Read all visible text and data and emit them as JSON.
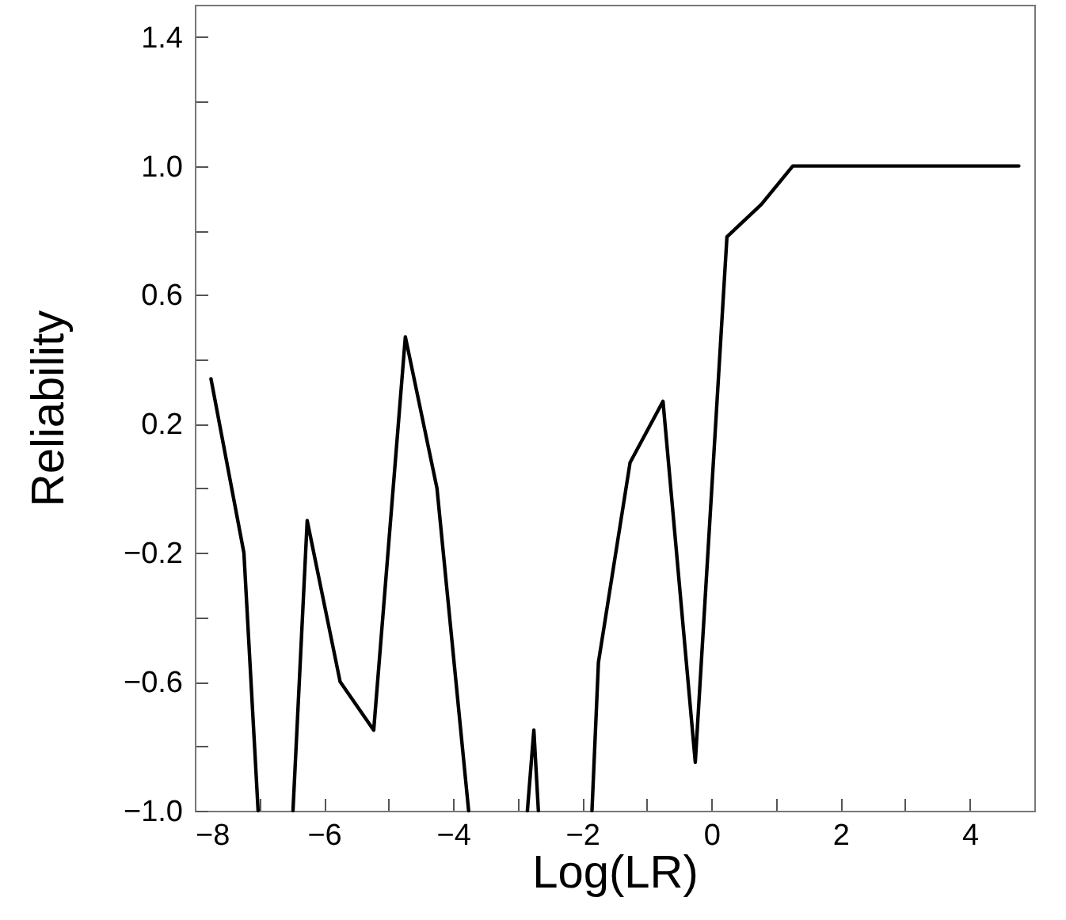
{
  "chart_data": {
    "type": "line",
    "xlabel": "Log(LR)",
    "ylabel": "Reliability",
    "series": [
      {
        "color": "#000000",
        "x": [
          -7.75,
          -7.24,
          -7.02,
          -6.75,
          -6.48,
          -6.26,
          -5.75,
          -5.23,
          -4.74,
          -4.25,
          -3.76,
          -3.3,
          -2.85,
          -2.75,
          -2.68,
          -2.3,
          -1.85,
          -1.75,
          -1.26,
          -0.75,
          -0.25,
          0.24,
          0.77,
          1.26,
          4.76
        ],
        "values": [
          0.34,
          -0.2,
          -1.0,
          null,
          -1.0,
          -0.1,
          -0.6,
          -0.75,
          0.47,
          0.0,
          -1.0,
          null,
          -1.0,
          -0.75,
          -1.0,
          null,
          -1.0,
          -0.54,
          0.08,
          0.27,
          -0.85,
          0.78,
          0.88,
          1.0,
          1.0
        ]
      }
    ],
    "xlim": [
      -8,
      5
    ],
    "xticks": [
      -8,
      {
        "value": -7,
        "label": null
      },
      -6,
      {
        "value": -5,
        "label": null
      },
      -4,
      {
        "value": -3,
        "label": null
      },
      -2,
      {
        "value": -1,
        "label": null
      },
      0,
      {
        "value": 1,
        "label": null
      },
      2,
      {
        "value": 3,
        "label": null
      },
      4
    ],
    "ylim": [
      -1.0,
      1.5
    ],
    "yticks": [
      {
        "value": -1.0,
        "label": "−1.0"
      },
      {
        "value": -0.8,
        "label": null
      },
      {
        "value": -0.6,
        "label": "−0.6"
      },
      {
        "value": -0.4,
        "label": null
      },
      {
        "value": -0.2,
        "label": "−0.2"
      },
      {
        "value": 0.0,
        "label": null
      },
      {
        "value": 0.2,
        "label": "0.2"
      },
      {
        "value": 0.4,
        "label": null
      },
      {
        "value": 0.6,
        "label": "0.6"
      },
      {
        "value": 0.8,
        "label": null
      },
      {
        "value": 1.0,
        "label": "1.0"
      },
      {
        "value": 1.2,
        "label": null
      },
      {
        "value": 1.4,
        "label": "1.4"
      }
    ],
    "grid": false,
    "marker": "none",
    "line_style": "solid"
  }
}
